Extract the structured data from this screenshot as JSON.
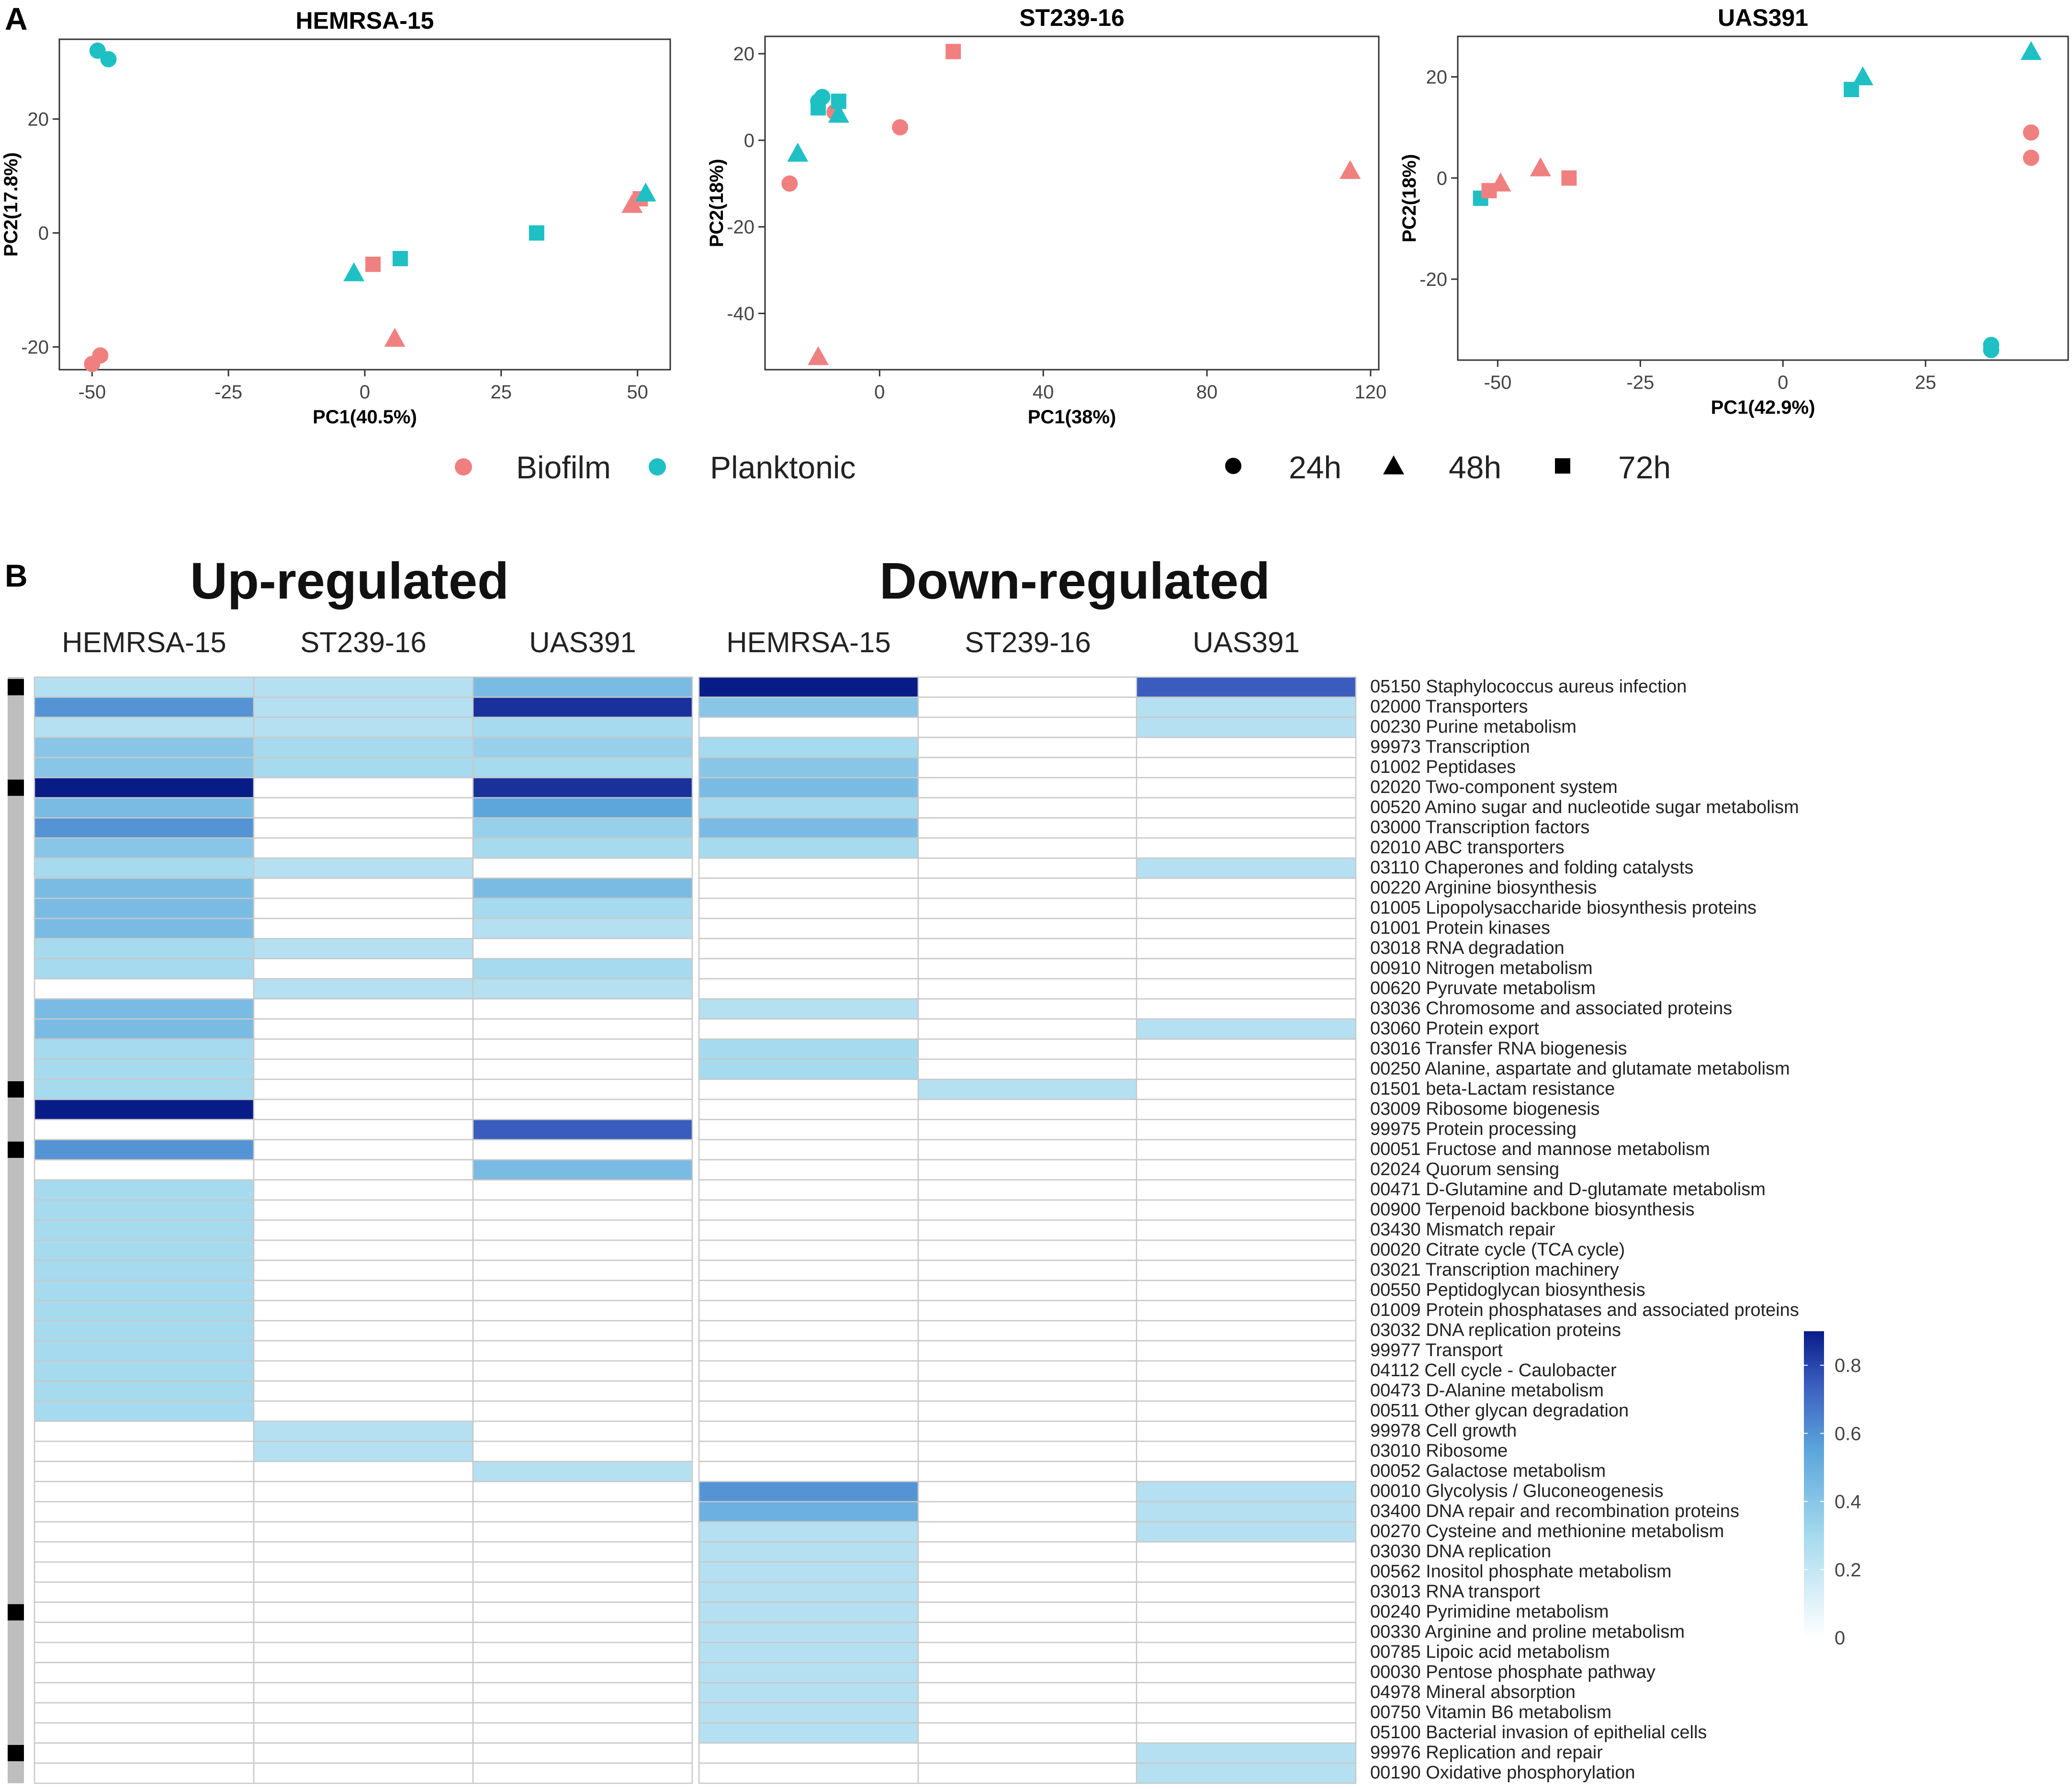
{
  "panel_a_label": "A",
  "panel_b_label": "B",
  "colors": {
    "biofilm": "#F08080",
    "planktonic": "#1FC0C4",
    "heat_low": "#FFFFFF",
    "heat_mid": "#A6DAEE",
    "heat_high": "#081C88",
    "side_bar": "#BEBEBE",
    "marker": "#000000"
  },
  "legend": {
    "groups": [
      {
        "label": "Biofilm",
        "color": "#F08080"
      },
      {
        "label": "Planktonic",
        "color": "#1FC0C4"
      }
    ],
    "times": [
      {
        "label": "24h",
        "shape": "circle"
      },
      {
        "label": "48h",
        "shape": "triangle"
      },
      {
        "label": "72h",
        "shape": "square"
      }
    ]
  },
  "chart_data": [
    {
      "type": "scatter",
      "title": "HEMRSA-15",
      "xlabel": "PC1(40.5%)",
      "ylabel": "PC2(17.8%)",
      "xlim": [
        -56,
        56
      ],
      "ylim": [
        -24,
        34
      ],
      "xticks": [
        -50,
        -25,
        0,
        25,
        50
      ],
      "yticks": [
        -20,
        0,
        20
      ],
      "points": [
        {
          "x": -50,
          "y": -23,
          "group": "Biofilm",
          "time": "24h"
        },
        {
          "x": -48.5,
          "y": -21.5,
          "group": "Biofilm",
          "time": "24h"
        },
        {
          "x": -49,
          "y": 32,
          "group": "Planktonic",
          "time": "24h"
        },
        {
          "x": -47,
          "y": 30.5,
          "group": "Planktonic",
          "time": "24h"
        },
        {
          "x": -2,
          "y": -7,
          "group": "Planktonic",
          "time": "48h"
        },
        {
          "x": 1.5,
          "y": -5.5,
          "group": "Biofilm",
          "time": "72h"
        },
        {
          "x": 6.5,
          "y": -4.5,
          "group": "Planktonic",
          "time": "72h"
        },
        {
          "x": 5.5,
          "y": -18.5,
          "group": "Biofilm",
          "time": "48h"
        },
        {
          "x": 31.5,
          "y": 0,
          "group": "Planktonic",
          "time": "72h"
        },
        {
          "x": 49,
          "y": 5,
          "group": "Biofilm",
          "time": "48h"
        },
        {
          "x": 50.5,
          "y": 6,
          "group": "Biofilm",
          "time": "72h"
        },
        {
          "x": 51.5,
          "y": 7,
          "group": "Planktonic",
          "time": "48h"
        }
      ]
    },
    {
      "type": "scatter",
      "title": "ST239-16",
      "xlabel": "PC1(38%)",
      "ylabel": "PC2(18%)",
      "xlim": [
        -28,
        122
      ],
      "ylim": [
        -53,
        24
      ],
      "xticks": [
        0,
        40,
        80,
        120
      ],
      "yticks": [
        -40,
        -20,
        0,
        20
      ],
      "points": [
        {
          "x": -22,
          "y": -10,
          "group": "Biofilm",
          "time": "24h"
        },
        {
          "x": 5,
          "y": 3,
          "group": "Biofilm",
          "time": "24h"
        },
        {
          "x": -20,
          "y": -3,
          "group": "Planktonic",
          "time": "48h"
        },
        {
          "x": -15,
          "y": -50,
          "group": "Biofilm",
          "time": "48h"
        },
        {
          "x": -14,
          "y": 10,
          "group": "Planktonic",
          "time": "24h"
        },
        {
          "x": -15,
          "y": 9,
          "group": "Planktonic",
          "time": "24h"
        },
        {
          "x": -15,
          "y": 7.5,
          "group": "Planktonic",
          "time": "72h"
        },
        {
          "x": -11,
          "y": 6.5,
          "group": "Biofilm",
          "time": "24h"
        },
        {
          "x": -10,
          "y": 6,
          "group": "Planktonic",
          "time": "48h"
        },
        {
          "x": -10,
          "y": 9,
          "group": "Planktonic",
          "time": "72h"
        },
        {
          "x": 18,
          "y": 20.5,
          "group": "Biofilm",
          "time": "72h"
        },
        {
          "x": 115,
          "y": -7,
          "group": "Biofilm",
          "time": "48h"
        }
      ]
    },
    {
      "type": "scatter",
      "title": "UAS391",
      "xlabel": "PC1(42.9%)",
      "ylabel": "PC2(18%)",
      "xlim": [
        -57,
        50
      ],
      "ylim": [
        -36,
        28
      ],
      "xticks": [
        -50,
        -25,
        0,
        25
      ],
      "yticks": [
        -20,
        0,
        20
      ],
      "points": [
        {
          "x": -53,
          "y": -4,
          "group": "Planktonic",
          "time": "72h"
        },
        {
          "x": -51.5,
          "y": -2.5,
          "group": "Biofilm",
          "time": "72h"
        },
        {
          "x": -49.5,
          "y": -1,
          "group": "Biofilm",
          "time": "48h"
        },
        {
          "x": -42.5,
          "y": 2,
          "group": "Biofilm",
          "time": "48h"
        },
        {
          "x": -37.5,
          "y": 0,
          "group": "Biofilm",
          "time": "72h"
        },
        {
          "x": 12,
          "y": 17.5,
          "group": "Planktonic",
          "time": "72h"
        },
        {
          "x": 14,
          "y": 20,
          "group": "Planktonic",
          "time": "48h"
        },
        {
          "x": 36.5,
          "y": -33,
          "group": "Planktonic",
          "time": "24h"
        },
        {
          "x": 36.5,
          "y": -34,
          "group": "Planktonic",
          "time": "24h"
        },
        {
          "x": 43.5,
          "y": 25,
          "group": "Planktonic",
          "time": "48h"
        },
        {
          "x": 43.5,
          "y": 9,
          "group": "Biofilm",
          "time": "24h"
        },
        {
          "x": 43.5,
          "y": 4,
          "group": "Biofilm",
          "time": "24h"
        }
      ]
    },
    {
      "type": "heatmap",
      "section_titles": [
        "Up-regulated",
        "Down-regulated"
      ],
      "columns": [
        "HEMRSA-15",
        "ST239-16",
        "UAS391",
        "HEMRSA-15",
        "ST239-16",
        "UAS391"
      ],
      "colorbar": {
        "ticks": [
          "0.8",
          "0.6",
          "0.4",
          "0.2",
          "0"
        ],
        "range": [
          0,
          0.9
        ]
      },
      "marked_rows": [
        0,
        5,
        20,
        23,
        46,
        53
      ],
      "rows": [
        "05150 Staphylococcus aureus infection",
        "02000 Transporters",
        "00230 Purine metabolism",
        "99973 Transcription",
        "01002 Peptidases",
        "02020 Two-component system",
        "00520 Amino sugar and nucleotide sugar metabolism",
        "03000 Transcription factors",
        "02010 ABC transporters",
        "03110 Chaperones and folding catalysts",
        "00220 Arginine biosynthesis",
        "01005 Lipopolysaccharide biosynthesis proteins",
        "01001 Protein kinases",
        "03018 RNA degradation",
        "00910 Nitrogen metabolism",
        "00620 Pyruvate metabolism",
        "03036 Chromosome and associated proteins",
        "03060 Protein export",
        "03016 Transfer RNA biogenesis",
        "00250 Alanine, aspartate and glutamate metabolism",
        "01501 beta-Lactam resistance",
        "03009 Ribosome biogenesis",
        "99975 Protein processing",
        "00051 Fructose and mannose metabolism",
        "02024 Quorum sensing",
        "00471 D-Glutamine and D-glutamate metabolism",
        "00900 Terpenoid backbone biosynthesis",
        "03430 Mismatch repair",
        "00020 Citrate cycle (TCA cycle)",
        "03021 Transcription machinery",
        "00550 Peptidoglycan biosynthesis",
        "01009 Protein phosphatases and associated proteins",
        "03032 DNA replication proteins",
        "99977 Transport",
        "04112 Cell cycle - Caulobacter",
        "00473 D-Alanine metabolism",
        "00511 Other glycan degradation",
        "99978 Cell growth",
        "03010 Ribosome",
        "00052 Galactose metabolism",
        "00010 Glycolysis / Gluconeogenesis",
        "03400 DNA repair and recombination proteins",
        "00270 Cysteine and methionine metabolism",
        "03030 DNA replication",
        "00562 Inositol phosphate metabolism",
        "03013 RNA transport",
        "00240 Pyrimidine metabolism",
        "00330 Arginine and proline metabolism",
        "00785 Lipoic acid metabolism",
        "00030 Pentose phosphate pathway",
        "04978 Mineral absorption",
        "00750 Vitamin B6 metabolism",
        "05100 Bacterial invasion of epithelial cells",
        "99976 Replication and repair",
        "00190 Oxidative phosphorylation"
      ],
      "values": [
        [
          0.25,
          0.25,
          0.45,
          0.9,
          0,
          0.75
        ],
        [
          0.6,
          0.25,
          0.85,
          0.4,
          0,
          0.25
        ],
        [
          0.25,
          0.25,
          0.3,
          0,
          0,
          0.25
        ],
        [
          0.4,
          0.3,
          0.35,
          0.3,
          0,
          0
        ],
        [
          0.4,
          0.3,
          0.3,
          0.4,
          0,
          0
        ],
        [
          0.9,
          0,
          0.85,
          0.45,
          0,
          0
        ],
        [
          0.45,
          0,
          0.55,
          0.3,
          0,
          0
        ],
        [
          0.6,
          0,
          0.35,
          0.45,
          0,
          0
        ],
        [
          0.4,
          0,
          0.3,
          0.3,
          0,
          0
        ],
        [
          0.3,
          0.25,
          0,
          0,
          0,
          0.25
        ],
        [
          0.45,
          0,
          0.45,
          0,
          0,
          0
        ],
        [
          0.45,
          0,
          0.3,
          0,
          0,
          0
        ],
        [
          0.45,
          0,
          0.25,
          0,
          0,
          0
        ],
        [
          0.3,
          0.25,
          0,
          0,
          0,
          0
        ],
        [
          0.3,
          0,
          0.3,
          0,
          0,
          0
        ],
        [
          0,
          0.25,
          0.25,
          0,
          0,
          0
        ],
        [
          0.45,
          0,
          0,
          0.25,
          0,
          0
        ],
        [
          0.45,
          0,
          0,
          0,
          0,
          0.25
        ],
        [
          0.3,
          0,
          0,
          0.3,
          0,
          0
        ],
        [
          0.3,
          0,
          0,
          0.3,
          0,
          0
        ],
        [
          0.3,
          0,
          0,
          0,
          0.25,
          0
        ],
        [
          0.9,
          0,
          0,
          0,
          0,
          0
        ],
        [
          0,
          0,
          0.75,
          0,
          0,
          0
        ],
        [
          0.6,
          0,
          0,
          0,
          0,
          0
        ],
        [
          0,
          0,
          0.45,
          0,
          0,
          0
        ],
        [
          0.3,
          0,
          0,
          0,
          0,
          0
        ],
        [
          0.3,
          0,
          0,
          0,
          0,
          0
        ],
        [
          0.3,
          0,
          0,
          0,
          0,
          0
        ],
        [
          0.3,
          0,
          0,
          0,
          0,
          0
        ],
        [
          0.3,
          0,
          0,
          0,
          0,
          0
        ],
        [
          0.3,
          0,
          0,
          0,
          0,
          0
        ],
        [
          0.3,
          0,
          0,
          0,
          0,
          0
        ],
        [
          0.3,
          0,
          0,
          0,
          0,
          0
        ],
        [
          0.3,
          0,
          0,
          0,
          0,
          0
        ],
        [
          0.3,
          0,
          0,
          0,
          0,
          0
        ],
        [
          0.3,
          0,
          0,
          0,
          0,
          0
        ],
        [
          0.3,
          0,
          0,
          0,
          0,
          0
        ],
        [
          0,
          0.25,
          0,
          0,
          0,
          0
        ],
        [
          0,
          0.25,
          0,
          0,
          0,
          0
        ],
        [
          0,
          0,
          0.25,
          0,
          0,
          0
        ],
        [
          0,
          0,
          0,
          0.6,
          0,
          0.25
        ],
        [
          0,
          0,
          0,
          0.5,
          0,
          0.25
        ],
        [
          0,
          0,
          0,
          0.25,
          0,
          0.25
        ],
        [
          0,
          0,
          0,
          0.25,
          0,
          0
        ],
        [
          0,
          0,
          0,
          0.25,
          0,
          0
        ],
        [
          0,
          0,
          0,
          0.25,
          0,
          0
        ],
        [
          0,
          0,
          0,
          0.25,
          0,
          0
        ],
        [
          0,
          0,
          0,
          0.25,
          0,
          0
        ],
        [
          0,
          0,
          0,
          0.25,
          0,
          0
        ],
        [
          0,
          0,
          0,
          0.25,
          0,
          0
        ],
        [
          0,
          0,
          0,
          0.25,
          0,
          0
        ],
        [
          0,
          0,
          0,
          0.25,
          0,
          0
        ],
        [
          0,
          0,
          0,
          0.25,
          0,
          0
        ],
        [
          0,
          0,
          0,
          0,
          0,
          0.25
        ],
        [
          0,
          0,
          0,
          0,
          0,
          0.25
        ]
      ]
    }
  ]
}
